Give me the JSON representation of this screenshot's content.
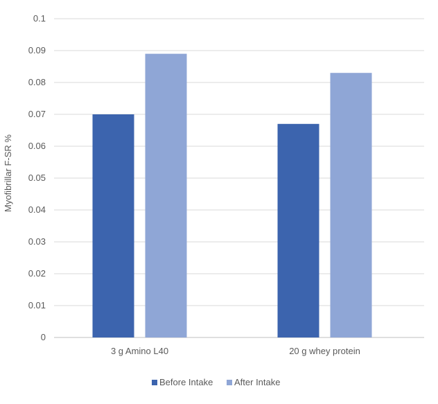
{
  "chart_data": {
    "type": "bar",
    "title": "",
    "xlabel": "",
    "ylabel": "Myofibrillar F-SR %",
    "ylim": [
      0,
      0.1
    ],
    "yticks": [
      "0",
      "0.01",
      "0.02",
      "0.03",
      "0.04",
      "0.05",
      "0.06",
      "0.07",
      "0.08",
      "0.09",
      "0.1"
    ],
    "categories": [
      "3 g Amino L40",
      "20 g whey protein"
    ],
    "series": [
      {
        "name": "Before Intake",
        "values": [
          0.07,
          0.067
        ],
        "color": "#3c64ae"
      },
      {
        "name": "After Intake",
        "values": [
          0.089,
          0.083
        ],
        "color": "#8fa6d6"
      }
    ],
    "grid": true,
    "legend": "bottom"
  }
}
